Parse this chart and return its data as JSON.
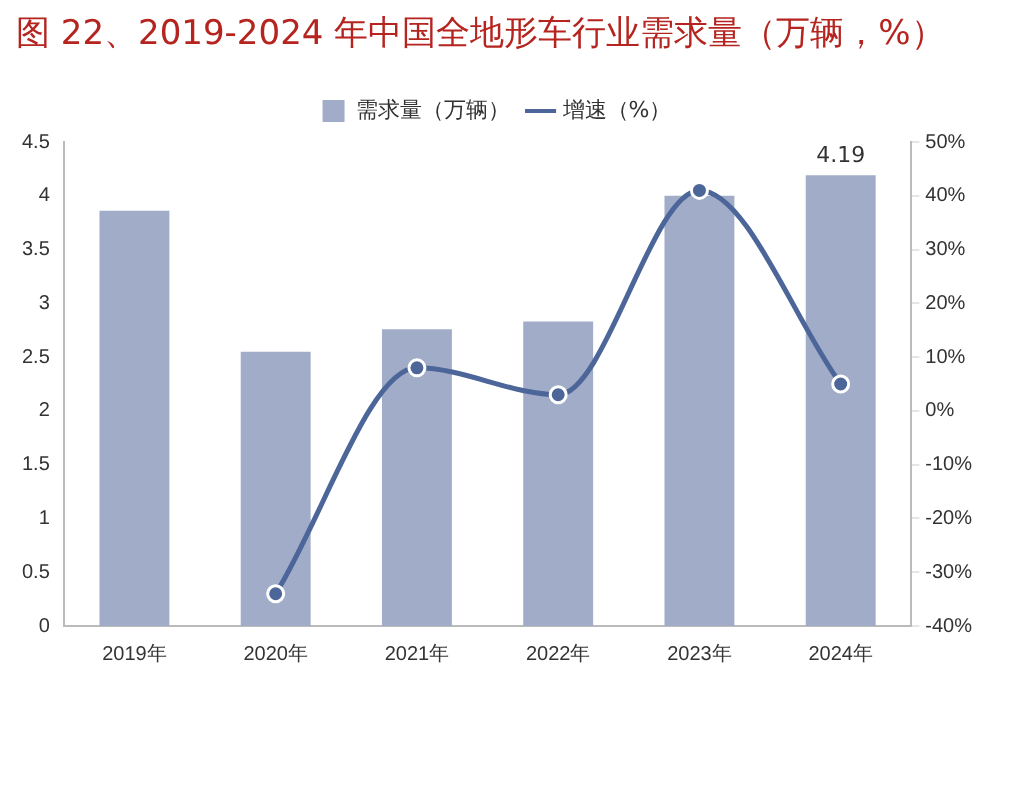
{
  "chart_data": {
    "type": "bar",
    "title": "图 22、2019-2024 年中国全地形车行业需求量（万辆，%）",
    "categories": [
      "2019年",
      "2020年",
      "2021年",
      "2022年",
      "2023年",
      "2024年"
    ],
    "series": [
      {
        "name": "需求量（万辆）",
        "color": "#a0acc8",
        "values": [
          3.86,
          2.55,
          2.76,
          2.83,
          4.0,
          4.19
        ],
        "value_labels": [
          null,
          null,
          null,
          null,
          null,
          "4.19"
        ]
      },
      {
        "name": "增速（%）",
        "type": "line",
        "axis": "y2",
        "color": "#4d6699",
        "values": [
          null,
          -34,
          8,
          3,
          41,
          5
        ],
        "marker": "circle"
      }
    ],
    "ylim": [
      0,
      4.5
    ],
    "yticks": [
      0,
      0.5,
      1,
      1.5,
      2,
      2.5,
      3,
      3.5,
      4,
      4.5
    ],
    "y2lim": [
      -40,
      50
    ],
    "y2ticks": [
      {
        "value": -40,
        "label": "-40%"
      },
      {
        "value": -30,
        "label": "-30%"
      },
      {
        "value": -20,
        "label": "-20%"
      },
      {
        "value": -10,
        "label": "-10%"
      },
      {
        "value": 0,
        "label": "0%"
      },
      {
        "value": 10,
        "label": "10%"
      },
      {
        "value": 20,
        "label": "20%"
      },
      {
        "value": 30,
        "label": "30%"
      },
      {
        "value": 40,
        "label": "40%"
      },
      {
        "value": 50,
        "label": "50%"
      }
    ],
    "legend": "top",
    "grid": false
  }
}
